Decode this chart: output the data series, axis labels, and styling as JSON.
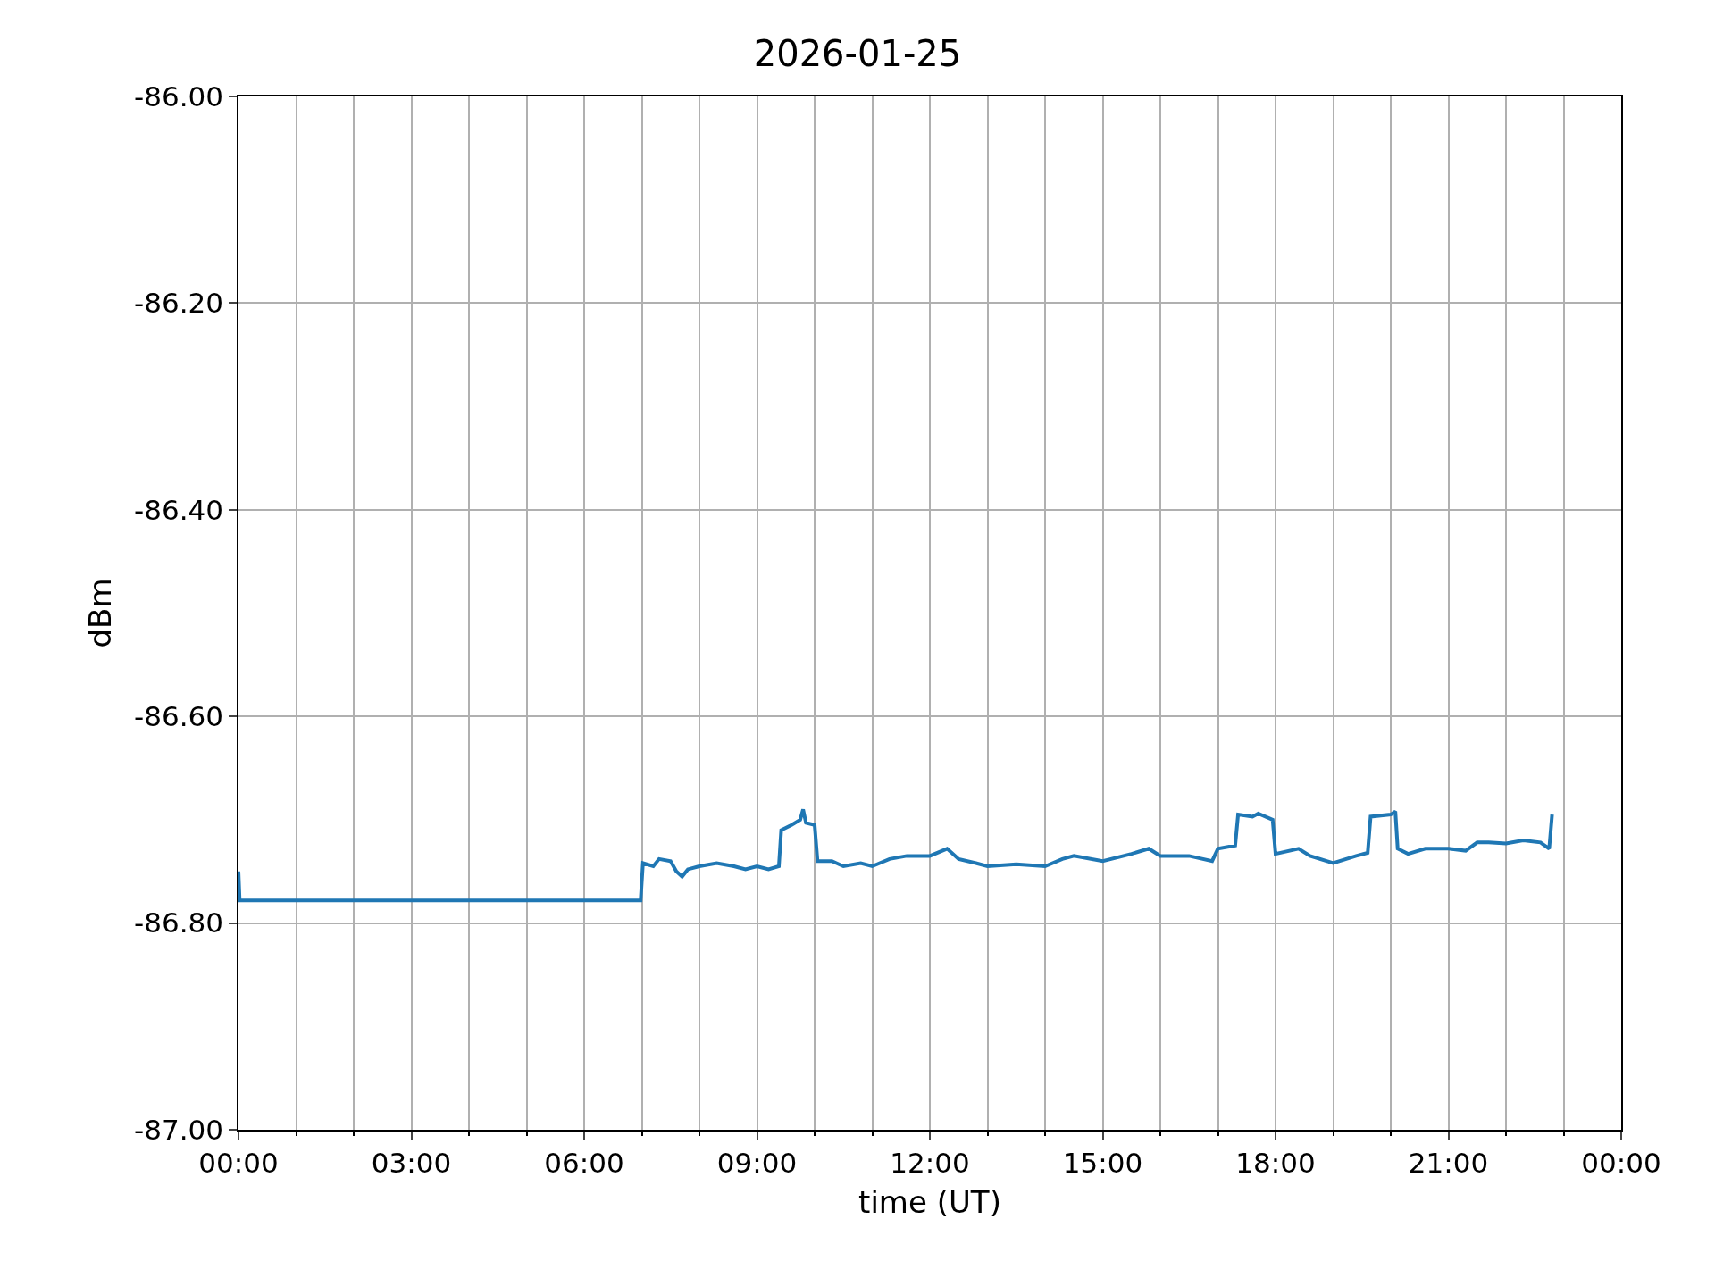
{
  "chart_data": {
    "type": "line",
    "title": "2026-01-25",
    "xlabel": "time (UT)",
    "ylabel": "dBm",
    "x": [
      0.0,
      0.02,
      6.98,
      7.02,
      7.2,
      7.3,
      7.5,
      7.6,
      7.7,
      7.8,
      8.0,
      8.3,
      8.6,
      8.8,
      9.0,
      9.2,
      9.38,
      9.42,
      9.6,
      9.75,
      9.8,
      9.85,
      10.0,
      10.05,
      10.3,
      10.5,
      10.8,
      11.0,
      11.3,
      11.6,
      12.0,
      12.3,
      12.5,
      12.8,
      13.0,
      13.5,
      14.0,
      14.3,
      14.5,
      15.0,
      15.5,
      15.8,
      16.0,
      16.5,
      16.9,
      17.0,
      17.3,
      17.35,
      17.6,
      17.7,
      17.95,
      18.0,
      18.4,
      18.6,
      19.0,
      19.4,
      19.6,
      19.65,
      20.0,
      20.08,
      20.12,
      20.3,
      20.6,
      21.0,
      21.3,
      21.5,
      21.7,
      22.0,
      22.3,
      22.6,
      22.75,
      22.8
    ],
    "series": [
      {
        "color": "#1f77b4",
        "values": [
          -86.75,
          -86.778,
          -86.778,
          -86.742,
          -86.745,
          -86.738,
          -86.74,
          -86.75,
          -86.755,
          -86.748,
          -86.745,
          -86.742,
          -86.745,
          -86.748,
          -86.745,
          -86.748,
          -86.745,
          -86.71,
          -86.705,
          -86.7,
          -86.69,
          -86.703,
          -86.705,
          -86.74,
          -86.74,
          -86.745,
          -86.742,
          -86.745,
          -86.738,
          -86.735,
          -86.735,
          -86.728,
          -86.738,
          -86.742,
          -86.745,
          -86.743,
          -86.745,
          -86.738,
          -86.735,
          -86.74,
          -86.733,
          -86.728,
          -86.735,
          -86.735,
          -86.74,
          -86.728,
          -86.725,
          -86.695,
          -86.697,
          -86.694,
          -86.7,
          -86.733,
          -86.728,
          -86.735,
          -86.742,
          -86.735,
          -86.732,
          -86.697,
          -86.695,
          -86.692,
          -86.728,
          -86.733,
          -86.728,
          -86.728,
          -86.73,
          -86.722,
          -86.722,
          -86.723,
          -86.72,
          -86.722,
          -86.728,
          -86.695
        ]
      }
    ],
    "xlim": [
      0,
      24
    ],
    "xticks": [
      {
        "value": 0,
        "label": "00:00"
      },
      {
        "value": 3,
        "label": "03:00"
      },
      {
        "value": 6,
        "label": "06:00"
      },
      {
        "value": 9,
        "label": "09:00"
      },
      {
        "value": 12,
        "label": "12:00"
      },
      {
        "value": 15,
        "label": "15:00"
      },
      {
        "value": 18,
        "label": "18:00"
      },
      {
        "value": 21,
        "label": "21:00"
      },
      {
        "value": 24,
        "label": "00:00"
      }
    ],
    "ylim": [
      -87.0,
      -86.0
    ],
    "yticks": [
      {
        "value": -87.0,
        "label": "-87.00"
      },
      {
        "value": -86.8,
        "label": "-86.80"
      },
      {
        "value": -86.6,
        "label": "-86.60"
      },
      {
        "value": -86.4,
        "label": "-86.40"
      },
      {
        "value": -86.2,
        "label": "-86.20"
      },
      {
        "value": -86.0,
        "label": "-86.00"
      }
    ],
    "grid": true,
    "line_style": "solid",
    "marker": "none"
  }
}
